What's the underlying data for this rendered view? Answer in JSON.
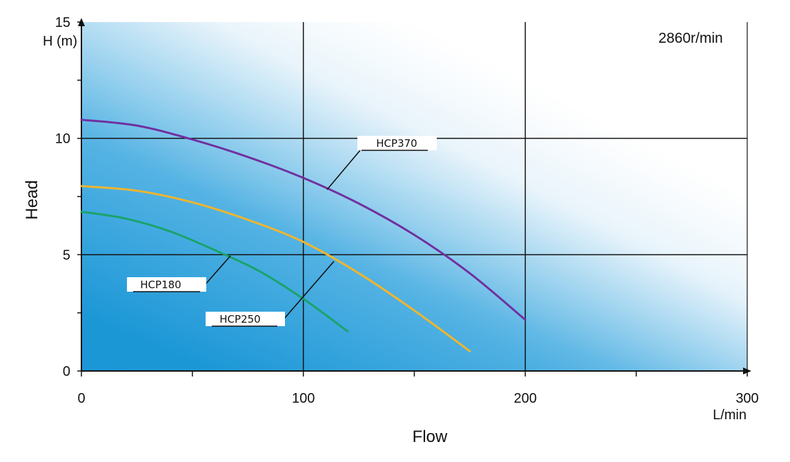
{
  "chart_data": {
    "type": "line",
    "xlabel": "Flow",
    "ylabel": "Head",
    "x_unit": "L/min",
    "y_unit": "H (m)",
    "annotation": "2860r/min",
    "xlim": [
      0,
      300
    ],
    "ylim": [
      0,
      15
    ],
    "x_ticks": [
      0,
      100,
      200,
      300
    ],
    "y_ticks": [
      0,
      5,
      10,
      15
    ],
    "grid": true,
    "background": "blue gradient",
    "series": [
      {
        "name": "HCP370",
        "color": "#7030a0",
        "x": [
          0,
          25,
          50,
          75,
          100,
          125,
          150,
          175,
          200
        ],
        "y": [
          10.8,
          10.55,
          9.95,
          9.2,
          8.3,
          7.2,
          5.85,
          4.2,
          2.2
        ]
      },
      {
        "name": "HCP250",
        "color": "#f2b52c",
        "x": [
          0,
          25,
          50,
          75,
          100,
          125,
          150,
          175
        ],
        "y": [
          7.95,
          7.75,
          7.25,
          6.5,
          5.55,
          4.2,
          2.6,
          0.85
        ]
      },
      {
        "name": "HCP180",
        "color": "#1aa36a",
        "x": [
          0,
          20,
          40,
          60,
          80,
          100,
          120
        ],
        "y": [
          6.85,
          6.55,
          6.0,
          5.2,
          4.3,
          3.1,
          1.7
        ]
      }
    ]
  }
}
